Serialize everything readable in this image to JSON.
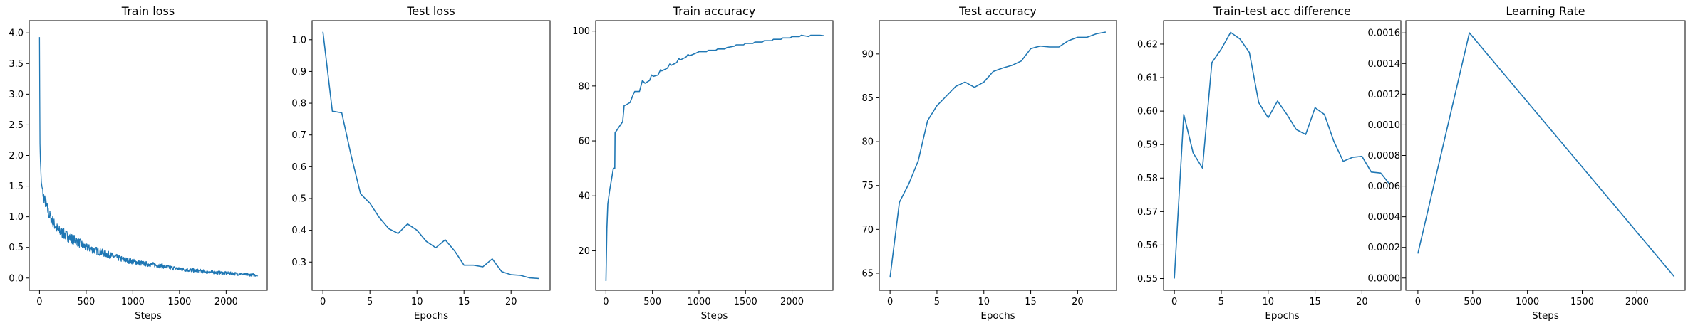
{
  "figure": {
    "background": "#ffffff",
    "line_color": "#1f77b4"
  },
  "chart_data": [
    {
      "type": "line",
      "title": "Train loss",
      "xlabel": "Steps",
      "ylabel": "",
      "xlim": [
        -110,
        2440
      ],
      "ylim": [
        -0.2,
        4.2
      ],
      "xticks": [
        0,
        500,
        1000,
        1500,
        2000
      ],
      "yticks": [
        0.0,
        0.5,
        1.0,
        1.5,
        2.0,
        2.5,
        3.0,
        3.5,
        4.0
      ],
      "ytick_decimals": 1,
      "series": [
        {
          "noise": 0.045,
          "x": [
            0,
            5,
            10,
            20,
            40,
            60,
            100,
            150,
            200,
            300,
            400,
            500,
            600,
            700,
            800,
            900,
            1000,
            1100,
            1200,
            1300,
            1400,
            1500,
            1600,
            1700,
            1800,
            1900,
            2000,
            2100,
            2200,
            2300,
            2340
          ],
          "y": [
            3.95,
            2.2,
            1.9,
            1.55,
            1.35,
            1.25,
            1.05,
            0.9,
            0.78,
            0.68,
            0.6,
            0.5,
            0.45,
            0.4,
            0.35,
            0.3,
            0.27,
            0.24,
            0.22,
            0.2,
            0.17,
            0.15,
            0.13,
            0.12,
            0.1,
            0.09,
            0.08,
            0.07,
            0.06,
            0.05,
            0.05
          ]
        }
      ]
    },
    {
      "type": "line",
      "title": "Test loss",
      "xlabel": "Epochs",
      "ylabel": "",
      "xlim": [
        -1.15,
        24.15
      ],
      "ylim": [
        0.211,
        1.06
      ],
      "xticks": [
        0,
        5,
        10,
        15,
        20
      ],
      "yticks": [
        0.3,
        0.4,
        0.5,
        0.6,
        0.7,
        0.8,
        0.9,
        1.0
      ],
      "ytick_decimals": 1,
      "series": [
        {
          "x": [
            0,
            1,
            2,
            3,
            4,
            5,
            6,
            7,
            8,
            9,
            10,
            11,
            12,
            13,
            14,
            15,
            16,
            17,
            18,
            19,
            20,
            21,
            22,
            23
          ],
          "y": [
            1.025,
            0.775,
            0.77,
            0.635,
            0.515,
            0.485,
            0.44,
            0.405,
            0.39,
            0.42,
            0.4,
            0.365,
            0.345,
            0.37,
            0.335,
            0.29,
            0.29,
            0.285,
            0.31,
            0.27,
            0.26,
            0.258,
            0.25,
            0.248
          ]
        }
      ]
    },
    {
      "type": "line",
      "title": "Train accuracy",
      "xlabel": "Steps",
      "ylabel": "",
      "xlim": [
        -110,
        2440
      ],
      "ylim": [
        5.6,
        103.8
      ],
      "xticks": [
        0,
        500,
        1000,
        1500,
        2000
      ],
      "yticks": [
        20,
        40,
        60,
        80,
        100
      ],
      "ytick_decimals": 0,
      "series": [
        {
          "x": [
            0,
            10,
            20,
            40,
            60,
            80,
            95,
            98,
            120,
            140,
            180,
            196,
            210,
            260,
            294,
            310,
            360,
            392,
            420,
            470,
            490,
            510,
            560,
            588,
            600,
            660,
            686,
            700,
            760,
            784,
            800,
            860,
            882,
            900,
            970,
            1000,
            1080,
            1100,
            1180,
            1200,
            1280,
            1300,
            1380,
            1400,
            1480,
            1500,
            1580,
            1600,
            1680,
            1700,
            1780,
            1800,
            1880,
            1900,
            1980,
            2000,
            2080,
            2100,
            2180,
            2200,
            2280,
            2300,
            2340
          ],
          "y": [
            9,
            28,
            37,
            42,
            46,
            50,
            50,
            63,
            64,
            65,
            67,
            73,
            73,
            74,
            77,
            78,
            78,
            82,
            81,
            82,
            84,
            83.5,
            84,
            86,
            85.5,
            86.5,
            88,
            87.5,
            88.5,
            90,
            89.5,
            90.5,
            91.5,
            91,
            92,
            92.5,
            92.5,
            93,
            93,
            93.5,
            93.5,
            94,
            94.5,
            95,
            95,
            95.5,
            95.5,
            96,
            96,
            96.5,
            96.5,
            97,
            97,
            97.5,
            97.5,
            98,
            98,
            98.5,
            98,
            98.5,
            98.5,
            98.5,
            98.3
          ]
        }
      ]
    },
    {
      "type": "line",
      "title": "Test accuracy",
      "xlabel": "Epochs",
      "ylabel": "",
      "xlim": [
        -1.15,
        24.15
      ],
      "ylim": [
        63.05,
        93.8
      ],
      "xticks": [
        0,
        5,
        10,
        15,
        20
      ],
      "yticks": [
        65,
        70,
        75,
        80,
        85,
        90
      ],
      "ytick_decimals": 0,
      "series": [
        {
          "x": [
            0,
            1,
            2,
            3,
            4,
            5,
            6,
            7,
            8,
            9,
            10,
            11,
            12,
            13,
            14,
            15,
            16,
            17,
            18,
            19,
            20,
            21,
            22,
            23
          ],
          "y": [
            64.5,
            73.1,
            75.2,
            77.8,
            82.4,
            84.1,
            85.2,
            86.3,
            86.8,
            86.2,
            86.8,
            88.0,
            88.4,
            88.7,
            89.2,
            90.6,
            90.9,
            90.8,
            90.8,
            91.5,
            91.9,
            91.9,
            92.3,
            92.5
          ]
        }
      ]
    },
    {
      "type": "line",
      "title": "Train-test acc difference",
      "xlabel": "Epochs",
      "ylabel": "",
      "xlim": [
        -1.15,
        24.15
      ],
      "ylim": [
        0.5465,
        0.627
      ],
      "xticks": [
        0,
        5,
        10,
        15,
        20
      ],
      "yticks": [
        0.55,
        0.56,
        0.57,
        0.58,
        0.59,
        0.6,
        0.61,
        0.62
      ],
      "ytick_decimals": 2,
      "series": [
        {
          "x": [
            0,
            1,
            2,
            3,
            4,
            5,
            6,
            7,
            8,
            9,
            10,
            11,
            12,
            13,
            14,
            15,
            16,
            17,
            18,
            19,
            20,
            21,
            22,
            23
          ],
          "y": [
            0.55,
            0.599,
            0.5875,
            0.583,
            0.6145,
            0.6185,
            0.6235,
            0.6215,
            0.6175,
            0.6025,
            0.598,
            0.603,
            0.599,
            0.5945,
            0.593,
            0.601,
            0.599,
            0.591,
            0.585,
            0.5862,
            0.5865,
            0.5818,
            0.5815,
            0.578
          ]
        }
      ]
    },
    {
      "type": "line",
      "title": "Learning Rate",
      "xlabel": "Steps",
      "ylabel": "",
      "xlim": [
        -110,
        2440
      ],
      "ylim": [
        -8e-05,
        0.00168
      ],
      "xticks": [
        0,
        500,
        1000,
        1500,
        2000
      ],
      "yticks": [
        0.0,
        0.0002,
        0.0004,
        0.0006,
        0.0008,
        0.001,
        0.0012,
        0.0014,
        0.0016
      ],
      "ytick_decimals": 4,
      "series": [
        {
          "x": [
            0,
            470,
            2340
          ],
          "y": [
            0.00016,
            0.0016,
            1e-05
          ]
        }
      ]
    }
  ]
}
